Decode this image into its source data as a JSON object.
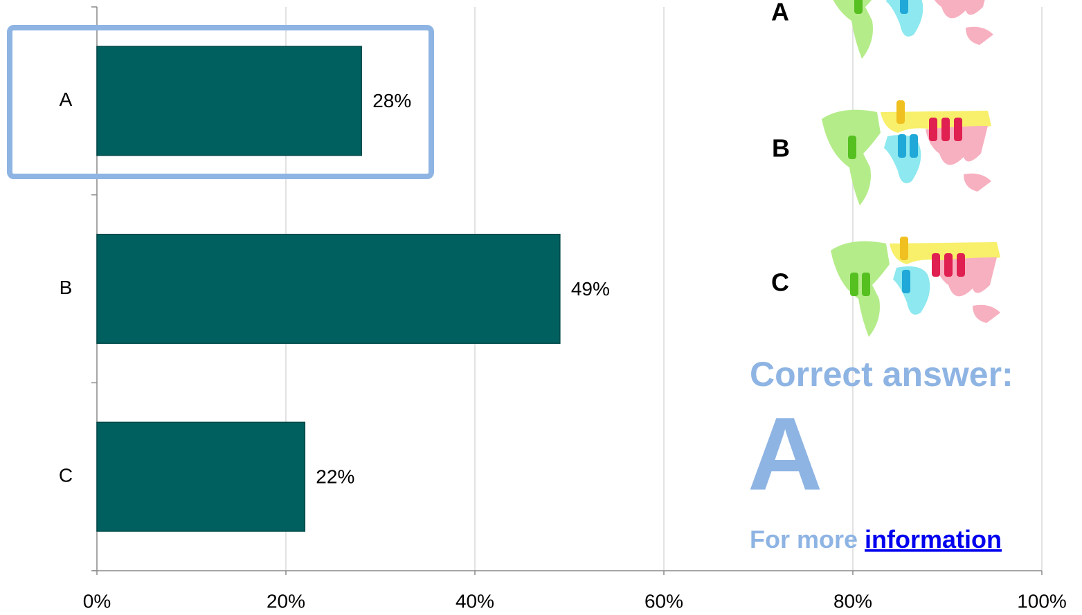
{
  "chart_data": {
    "type": "bar",
    "orientation": "horizontal",
    "categories": [
      "A",
      "B",
      "C"
    ],
    "values": [
      28,
      49,
      22
    ],
    "value_labels": [
      "28%",
      "49%",
      "22%"
    ],
    "color": "#006060",
    "grid": true,
    "xlim": [
      0,
      100
    ],
    "xticks": [
      {
        "value": 0,
        "label": "0%"
      },
      {
        "value": 20,
        "label": "20%"
      },
      {
        "value": 40,
        "label": "40%"
      },
      {
        "value": 60,
        "label": "60%"
      },
      {
        "value": 80,
        "label": "80%"
      },
      {
        "value": 100,
        "label": "100%"
      }
    ]
  },
  "sidebar": {
    "options": [
      "A",
      "B",
      "C"
    ],
    "correct_label": "Correct answer:",
    "correct_answer": "A",
    "more_prefix": "For more",
    "more_link": "information"
  }
}
